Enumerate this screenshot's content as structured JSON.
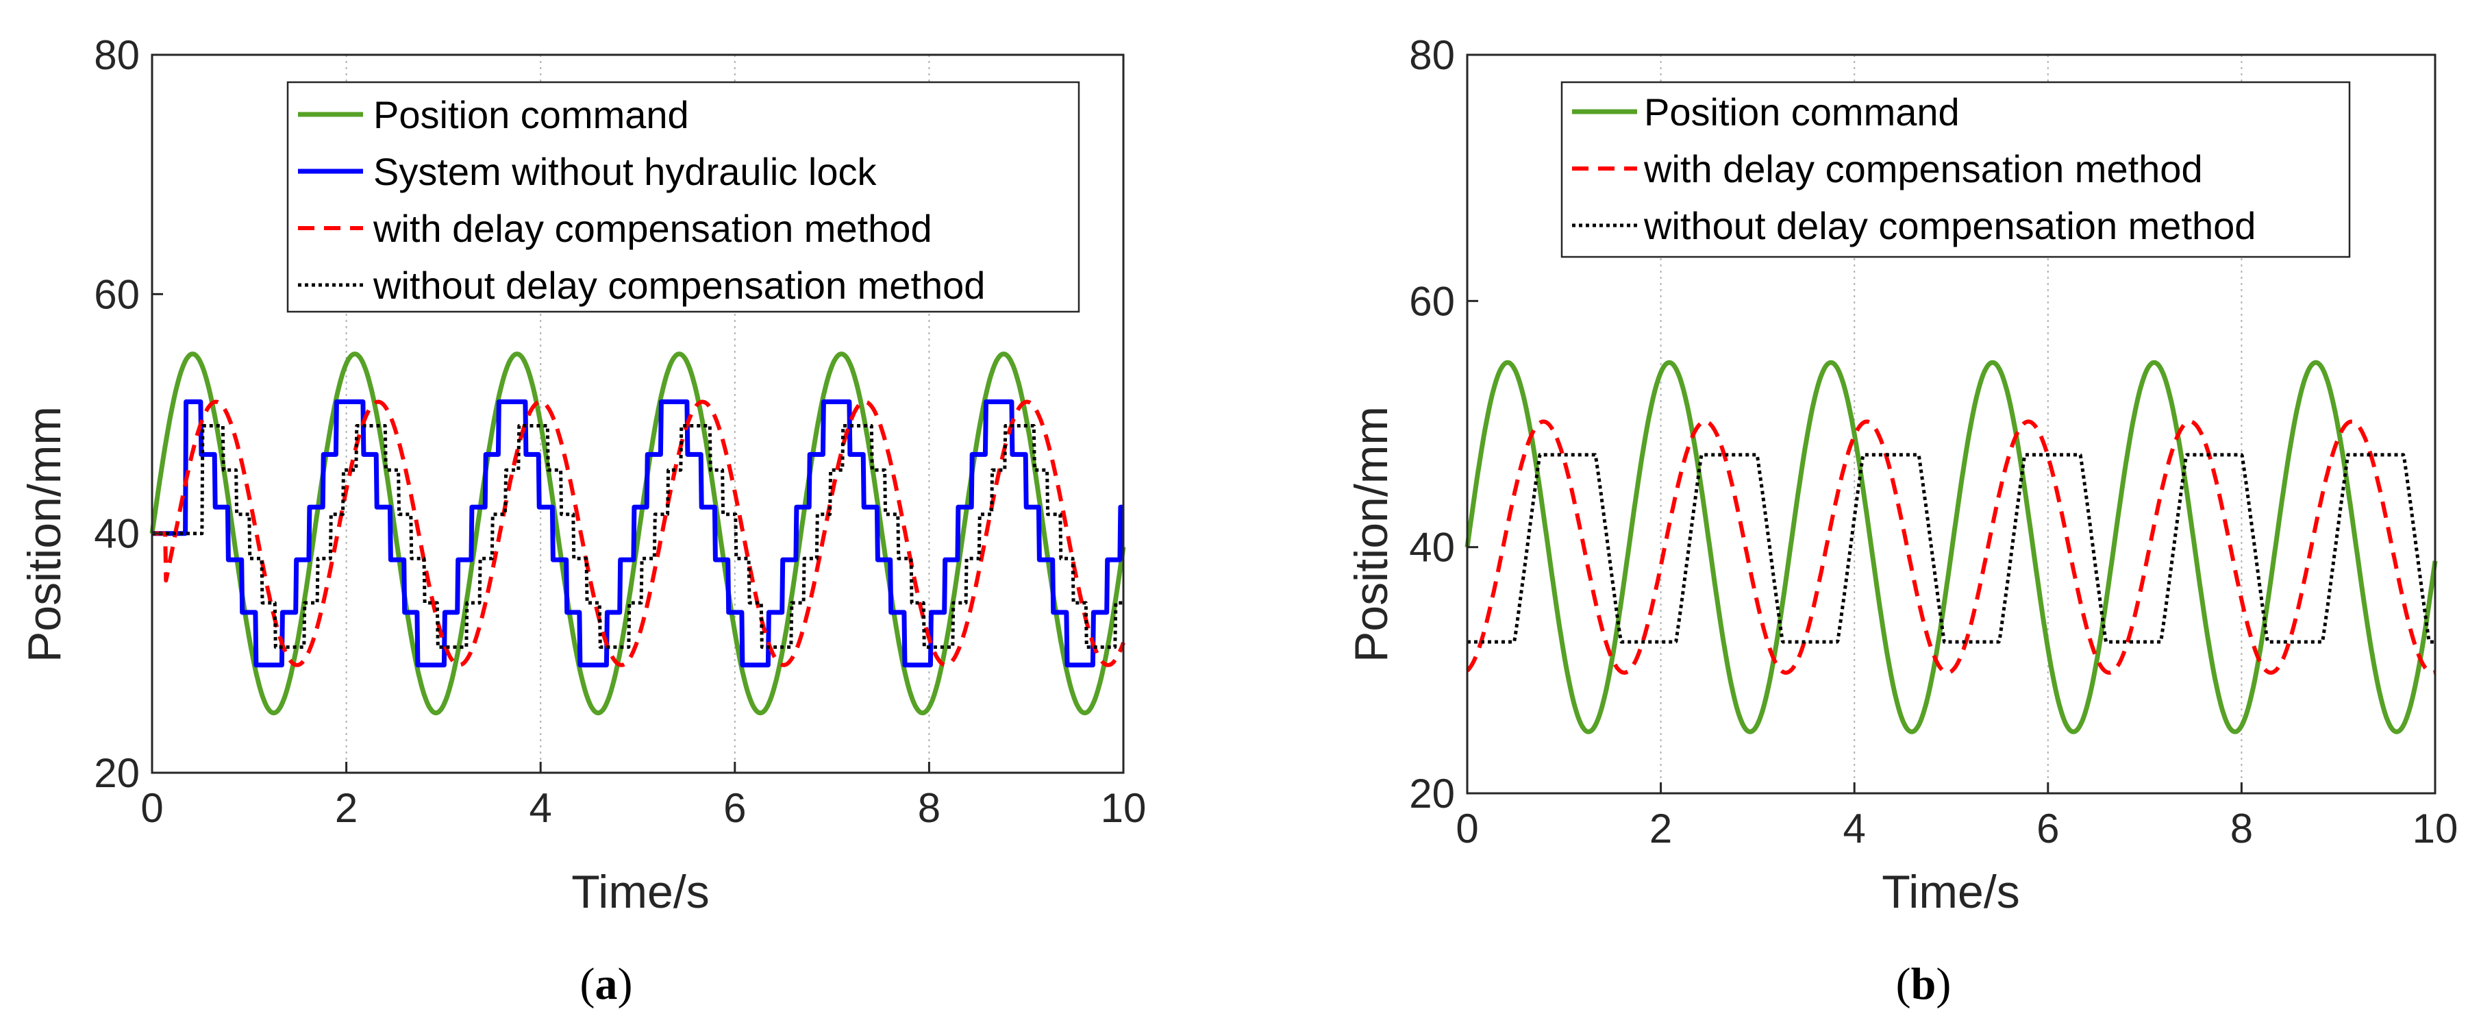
{
  "colors": {
    "command": "#56A126",
    "no_lock": "#0000FF",
    "with_comp": "#FF0000",
    "without_comp": "#000000",
    "grid": "#B0B0B0",
    "axis": "#262626"
  },
  "chart_data": [
    {
      "id": "a",
      "type": "line",
      "caption": {
        "open": "(",
        "letter": "a",
        "close": ")"
      },
      "xlabel": "Time/s",
      "ylabel": "Position/mm",
      "xlim": [
        0,
        10
      ],
      "ylim": [
        20,
        80
      ],
      "xticks": [
        0,
        2,
        4,
        6,
        8,
        10
      ],
      "yticks": [
        20,
        40,
        60,
        80
      ],
      "x_grid": true,
      "y_grid": false,
      "legend_position": "top-right",
      "series": [
        {
          "name": "Position command",
          "style": "solid",
          "color_key": "command",
          "model": "sine",
          "offset": 40,
          "amplitude": 15,
          "period": 1.67,
          "phase_s": 0,
          "x": [
            0,
            0.42,
            0.83,
            1.25,
            1.67,
            2.09,
            2.5,
            2.92,
            3.34,
            3.76,
            4.17,
            4.59,
            5.01,
            5.43,
            5.84,
            6.26,
            6.68,
            7.1,
            7.52,
            7.93,
            8.35,
            8.77,
            9.19,
            9.6,
            10
          ],
          "y": [
            40,
            55,
            40,
            25,
            40,
            55,
            40,
            25,
            40,
            55,
            40,
            25,
            40,
            55,
            40,
            25,
            40,
            55,
            40,
            25,
            40,
            55,
            40,
            25,
            40
          ]
        },
        {
          "name": "System without hydraulic lock",
          "style": "solid",
          "color_key": "no_lock",
          "model": "lock",
          "offset": 40,
          "high": 51,
          "low": 29,
          "start_value": 40,
          "period": 1.67,
          "phase_s": 0.3,
          "swing_start_s": 0.08,
          "swing_end_s": 0.5,
          "steps": 5,
          "start_hold_s": 0.35
        },
        {
          "name": "with delay compensation method",
          "style": "dashed",
          "color_key": "with_comp",
          "model": "sine",
          "offset": 40,
          "amplitude": 11,
          "period": 1.67,
          "phase_s": 0.24,
          "start_value": 40,
          "start_hold_s": 0.14
        },
        {
          "name": "without delay compensation method",
          "style": "dotted",
          "color_key": "without_comp",
          "model": "lock",
          "offset": 40,
          "high": 49,
          "low": 30.5,
          "start_value": 40,
          "period": 1.67,
          "phase_s": 0.5,
          "swing_start_s": 0.1,
          "swing_end_s": 0.5,
          "steps": 5,
          "start_hold_s": 0.52
        }
      ]
    },
    {
      "id": "b",
      "type": "line",
      "caption": {
        "open": "(",
        "letter": "b",
        "close": ")"
      },
      "xlabel": "Time/s",
      "ylabel": "Position/mm",
      "xlim": [
        0,
        10
      ],
      "ylim": [
        20,
        80
      ],
      "xticks": [
        0,
        2,
        4,
        6,
        8,
        10
      ],
      "yticks": [
        20,
        40,
        60,
        80
      ],
      "x_grid": true,
      "y_grid": false,
      "legend_position": "top-right",
      "series": [
        {
          "name": "Position command",
          "style": "solid",
          "color_key": "command",
          "model": "sine",
          "offset": 40,
          "amplitude": 15,
          "period": 1.67,
          "phase_s": 0,
          "x": [
            0,
            0.42,
            0.83,
            1.25,
            1.67,
            2.09,
            2.5,
            2.92,
            3.34,
            3.76,
            4.17,
            4.59,
            5.01,
            5.43,
            5.84,
            6.26,
            6.68,
            7.1,
            7.52,
            7.93,
            8.35,
            8.77,
            9.19,
            9.6,
            10
          ],
          "y": [
            40,
            55,
            40,
            25,
            40,
            55,
            40,
            25,
            40,
            55,
            40,
            25,
            40,
            55,
            40,
            25,
            40,
            55,
            40,
            25,
            40,
            55,
            40,
            25,
            40
          ]
        },
        {
          "name": "with delay compensation method",
          "style": "dashed",
          "color_key": "with_comp",
          "model": "sine",
          "offset": 40,
          "amplitude": 10.2,
          "period": 1.67,
          "phase_s": 0.37,
          "start_value": 32,
          "start_hold_s": 0
        },
        {
          "name": "without delay compensation method",
          "style": "dotted",
          "color_key": "without_comp",
          "model": "plateau",
          "offset": 40,
          "amplitude": 16,
          "clip_high": 47.5,
          "clip_low": 32.3,
          "period": 1.67,
          "phase_s": 0.62
        }
      ]
    }
  ]
}
